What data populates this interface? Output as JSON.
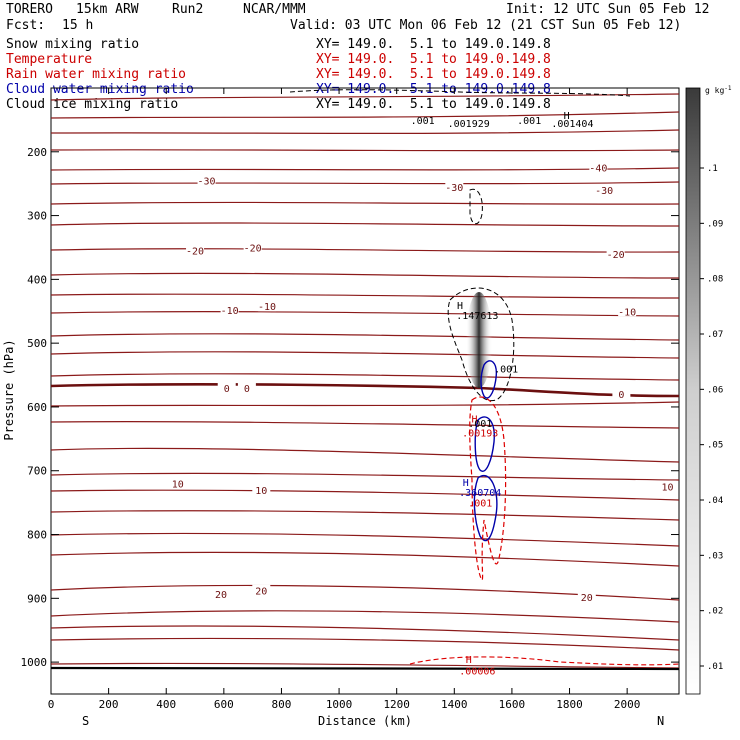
{
  "header": {
    "model": "TORERO",
    "grid": "15km ARW",
    "run": "Run2",
    "org": "NCAR/MMM",
    "init": "Init: 12 UTC Sun 05 Feb 12",
    "fcst_label": "Fcst:",
    "fcst_value": "15 h",
    "valid": "Valid: 03 UTC Mon 06 Feb 12 (21 CST Sun 05 Feb 12)"
  },
  "legend": [
    {
      "label": "Snow mixing ratio",
      "xy": "XY= 149.0.  5.1 to 149.0.149.8",
      "color": "#000000"
    },
    {
      "label": "Temperature",
      "xy": "XY= 149.0.  5.1 to 149.0.149.8",
      "color": "#cc0000"
    },
    {
      "label": "Rain water mixing ratio",
      "xy": "XY= 149.0.  5.1 to 149.0.149.8",
      "color": "#cc0000"
    },
    {
      "label": "Cloud water mixing ratio",
      "xy": "XY= 149.0.  5.1 to 149.0.149.8",
      "color": "#0000aa"
    },
    {
      "label": "Cloud ice mixing ratio",
      "xy": "XY= 149.0.  5.1 to 149.0.149.8",
      "color": "#000000"
    }
  ],
  "chart_data": {
    "type": "cross-section contour",
    "xlabel": "Distance (km)",
    "ylabel": "Pressure (hPa)",
    "xlim": [
      0,
      2180
    ],
    "ylim": [
      1050,
      100
    ],
    "xticks": [
      0,
      200,
      400,
      600,
      800,
      1000,
      1200,
      1400,
      1600,
      1800,
      2000
    ],
    "yticks": [
      200,
      300,
      400,
      500,
      600,
      700,
      800,
      900,
      1000
    ],
    "endpoints": {
      "left": "S",
      "right": "N"
    },
    "colorbar": {
      "unit": "g kg",
      "unit_exp": "-1",
      "ticks": [
        ".01",
        ".02",
        ".03",
        ".04",
        ".05",
        ".06",
        ".07",
        ".08",
        ".09",
        ".1"
      ]
    },
    "temperature_labels": [
      {
        "text": "-40",
        "x": 1900,
        "p": 225
      },
      {
        "text": "-30",
        "x": 540,
        "p": 245
      },
      {
        "text": "-30",
        "x": 1400,
        "p": 255
      },
      {
        "text": "-30",
        "x": 1920,
        "p": 260
      },
      {
        "text": "-20",
        "x": 500,
        "p": 355
      },
      {
        "text": "-20",
        "x": 700,
        "p": 350
      },
      {
        "text": "-20",
        "x": 1960,
        "p": 360
      },
      {
        "text": "-10",
        "x": 620,
        "p": 448
      },
      {
        "text": "-10",
        "x": 750,
        "p": 442
      },
      {
        "text": "-10",
        "x": 2000,
        "p": 450
      },
      {
        "text": "0",
        "x": 610,
        "p": 570
      },
      {
        "text": "0",
        "x": 680,
        "p": 570
      },
      {
        "text": "0",
        "x": 1980,
        "p": 580
      },
      {
        "text": "10",
        "x": 440,
        "p": 720
      },
      {
        "text": "10",
        "x": 730,
        "p": 730
      },
      {
        "text": "10",
        "x": 2140,
        "p": 725
      },
      {
        "text": "20",
        "x": 590,
        "p": 893
      },
      {
        "text": "20",
        "x": 730,
        "p": 888
      },
      {
        "text": "20",
        "x": 1860,
        "p": 898
      }
    ],
    "annotations": [
      {
        "text": "H",
        "x": 1420,
        "p": 440,
        "color": "#000000"
      },
      {
        "text": ".147613",
        "x": 1480,
        "p": 456,
        "color": "#000000"
      },
      {
        "text": ".001",
        "x": 1580,
        "p": 540,
        "color": "#000000"
      },
      {
        "text": "H",
        "x": 1470,
        "p": 618,
        "color": "#cc0000"
      },
      {
        "text": ".001",
        "x": 1490,
        "p": 625,
        "color": "#000000"
      },
      {
        "text": ".00193",
        "x": 1490,
        "p": 640,
        "color": "#cc0000"
      },
      {
        "text": "H",
        "x": 1440,
        "p": 718,
        "color": "#0000aa"
      },
      {
        "text": ".360704",
        "x": 1490,
        "p": 733,
        "color": "#0000aa"
      },
      {
        "text": ".001",
        "x": 1490,
        "p": 750,
        "color": "#cc0000"
      },
      {
        "text": "H",
        "x": 1450,
        "p": 995,
        "color": "#cc0000"
      },
      {
        "text": ".00006",
        "x": 1480,
        "p": 1013,
        "color": "#cc0000"
      },
      {
        "text": "H",
        "x": 1790,
        "p": 142,
        "color": "#000000"
      },
      {
        "text": ".001404",
        "x": 1810,
        "p": 155,
        "color": "#000000"
      },
      {
        "text": ".001",
        "x": 1290,
        "p": 150,
        "color": "#000000"
      },
      {
        "text": ".001929",
        "x": 1450,
        "p": 155,
        "color": "#000000"
      },
      {
        "text": ".001",
        "x": 1660,
        "p": 150,
        "color": "#000000"
      }
    ]
  }
}
